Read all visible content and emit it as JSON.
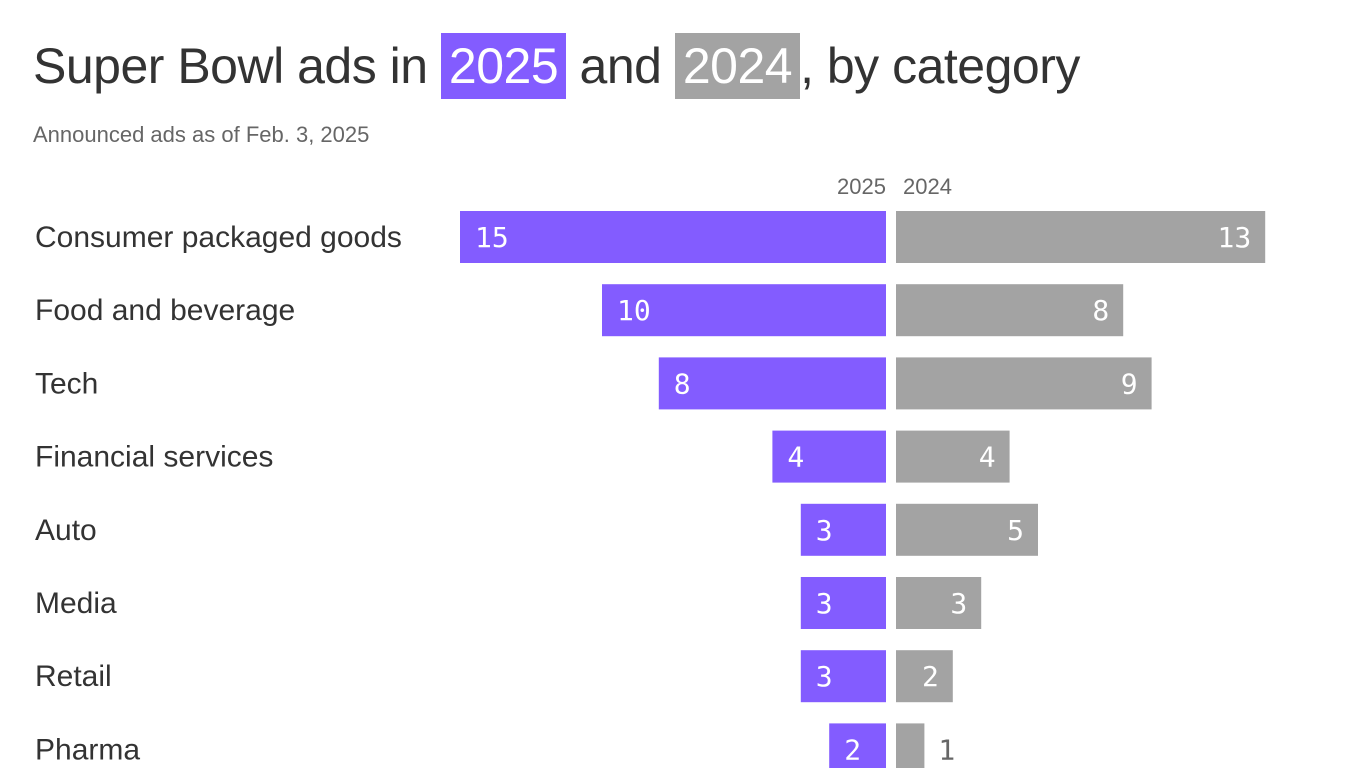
{
  "title": {
    "prefix": "Super Bowl ads in ",
    "year_a": "2025",
    "middle": " and ",
    "year_b": "2024",
    "suffix": ", by category"
  },
  "subtitle": "Announced ads as of Feb. 3, 2025",
  "colors": {
    "2025": "#835cff",
    "2024": "#a3a3a3",
    "text": "#333333",
    "label_outside": "#666666"
  },
  "chart_data": {
    "type": "bar",
    "orientation": "horizontal-diverging",
    "title": "Super Bowl ads in 2025 and 2024, by category",
    "subtitle": "Announced ads as of Feb. 3, 2025",
    "categories": [
      "Consumer packaged goods",
      "Food and beverage",
      "Tech",
      "Financial services",
      "Auto",
      "Media",
      "Retail",
      "Pharma"
    ],
    "series": [
      {
        "name": "2025",
        "values": [
          15,
          10,
          8,
          4,
          3,
          3,
          3,
          2
        ]
      },
      {
        "name": "2024",
        "values": [
          13,
          8,
          9,
          4,
          5,
          3,
          2,
          1
        ]
      }
    ],
    "xlabel": "",
    "ylabel": ""
  }
}
